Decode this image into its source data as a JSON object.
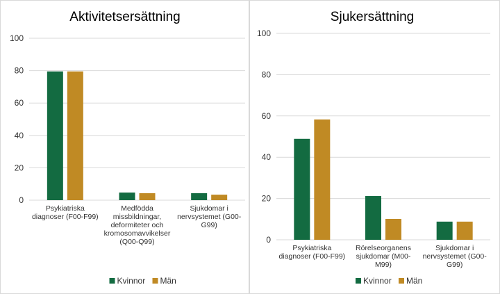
{
  "chart_data": [
    {
      "type": "bar",
      "title": "Aktivitetsersättning",
      "categories": [
        [
          "Psykiatriska",
          "diagnoser (F00-F99)"
        ],
        [
          "Medfödda",
          "missbildningar,",
          "deformiteter och",
          "kromosomavvikelser",
          "(Q00-Q99)"
        ],
        [
          "Sjukdomar i",
          "nervsystemet (G00-",
          "G99)"
        ]
      ],
      "series": [
        {
          "name": "Kvinnor",
          "color": "#136b41",
          "values": [
            79.5,
            4.7,
            4.3
          ]
        },
        {
          "name": "Män",
          "color": "#c08a24",
          "values": [
            79.5,
            4.3,
            3.4
          ]
        }
      ],
      "ylim": [
        0,
        100
      ],
      "yticks": [
        0,
        20,
        40,
        60,
        80,
        100
      ],
      "legend": "bottom",
      "grid": true
    },
    {
      "type": "bar",
      "title": "Sjukersättning",
      "categories": [
        [
          "Psykiatriska",
          "diagnoser (F00-F99)"
        ],
        [
          "Rörelseorganens",
          "sjukdomar (M00-",
          "M99)"
        ],
        [
          "Sjukdomar i",
          "nervsystemet (G00-",
          "G99)"
        ]
      ],
      "series": [
        {
          "name": "Kvinnor",
          "color": "#136b41",
          "values": [
            48.9,
            21.2,
            8.8
          ]
        },
        {
          "name": "Män",
          "color": "#c08a24",
          "values": [
            58.3,
            10.1,
            8.8
          ]
        }
      ],
      "ylim": [
        0,
        100
      ],
      "yticks": [
        0,
        20,
        40,
        60,
        80,
        100
      ],
      "legend": "bottom",
      "grid": true
    }
  ]
}
